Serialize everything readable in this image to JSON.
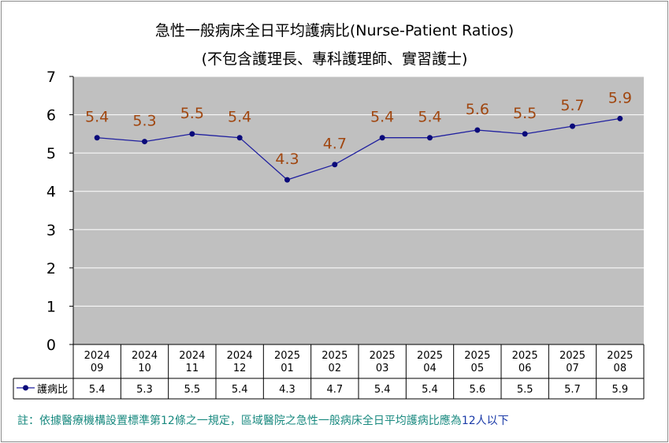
{
  "title": "急性一般病床全日平均護病比(Nurse-Patient Ratios)",
  "subtitle": "(不包含護理長、專科護理師、實習護士)",
  "note": {
    "prefix": "註：依據醫療機構設置標準第12條之一規定，區域醫院之急性一般病床全日平均護病比應為",
    "highlight": "12人以下"
  },
  "colors": {
    "plot_bg": "#c0c0c0",
    "line": "#1f1f9f",
    "marker": "#0a0a7a",
    "data_label": "#a0460f",
    "note_text": "#1a8a80",
    "note_highlight": "#1a3aa8"
  },
  "chart_data": {
    "type": "line",
    "title": "急性一般病床全日平均護病比(Nurse-Patient Ratios)",
    "subtitle": "(不包含護理長、專科護理師、實習護士)",
    "categories": [
      [
        "2024",
        "09"
      ],
      [
        "2024",
        "10"
      ],
      [
        "2024",
        "11"
      ],
      [
        "2024",
        "12"
      ],
      [
        "2025",
        "01"
      ],
      [
        "2025",
        "02"
      ],
      [
        "2025",
        "03"
      ],
      [
        "2025",
        "04"
      ],
      [
        "2025",
        "05"
      ],
      [
        "2025",
        "06"
      ],
      [
        "2025",
        "07"
      ],
      [
        "2025",
        "08"
      ]
    ],
    "series": [
      {
        "name": "護病比",
        "values": [
          5.4,
          5.3,
          5.5,
          5.4,
          4.3,
          4.7,
          5.4,
          5.4,
          5.6,
          5.5,
          5.7,
          5.9
        ]
      }
    ],
    "ylim": [
      0,
      7
    ],
    "yticks": [
      0,
      1,
      2,
      3,
      4,
      5,
      6,
      7
    ],
    "grid": true,
    "legend": "data-table",
    "data_labels": [
      "5.4",
      "5.3",
      "5.5",
      "5.4",
      "4.3",
      "4.7",
      "5.4",
      "5.4",
      "5.6",
      "5.5",
      "5.7",
      "5.9"
    ],
    "table_values": [
      "5.4",
      "5.3",
      "5.5",
      "5.4",
      "4.3",
      "4.7",
      "5.4",
      "5.4",
      "5.6",
      "5.5",
      "5.7",
      "5.9"
    ]
  }
}
